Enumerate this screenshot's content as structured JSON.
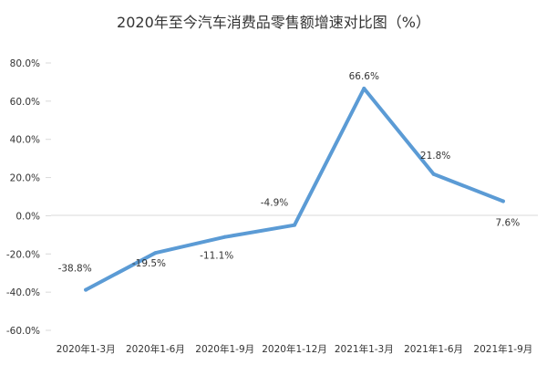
{
  "chart_data": {
    "type": "line",
    "title": "2020年至今汽车消费品零售额增速对比图（%）",
    "categories": [
      "2020年1-3月",
      "2020年1-6月",
      "2020年1-9月",
      "2020年1-12月",
      "2021年1-3月",
      "2021年1-6月",
      "2021年1-9月"
    ],
    "series": [
      {
        "values": [
          -38.8,
          -19.5,
          -11.1,
          -4.9,
          66.6,
          21.8,
          7.6
        ]
      }
    ],
    "data_labels": [
      "-38.8%",
      "-19.5%",
      "-11.1%",
      "-4.9%",
      "66.6%",
      "21.8%",
      "7.6%"
    ],
    "y_ticks": [
      "80.0%",
      "60.0%",
      "40.0%",
      "20.0%",
      "0.0%",
      "-20.0%",
      "-40.0%",
      "-60.0%"
    ],
    "y_tick_values": [
      80,
      60,
      40,
      20,
      0,
      -20,
      -40,
      -60
    ],
    "ylim": [
      -60,
      80
    ],
    "xlabel": "",
    "ylabel": "",
    "grid": false,
    "legend": "none",
    "line_color": "#5b9bd5",
    "axis_color": "#d9d9d9"
  }
}
